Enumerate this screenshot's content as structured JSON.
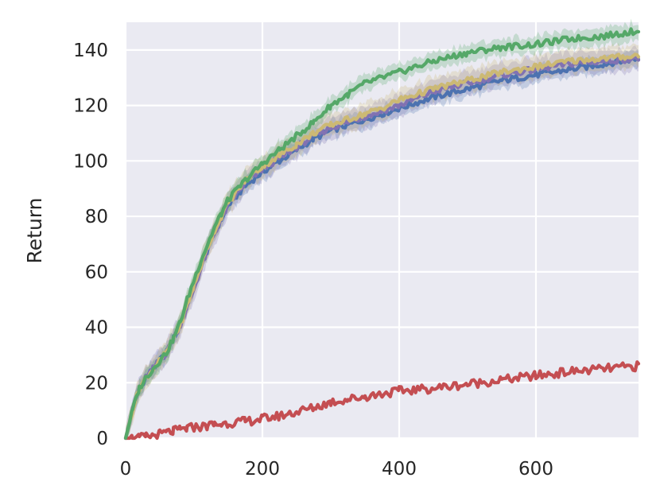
{
  "chart_data": {
    "type": "line",
    "title": "",
    "xlabel": "",
    "ylabel": "Return",
    "xlim": [
      0,
      750
    ],
    "ylim": [
      0,
      150
    ],
    "xticks": [
      0,
      200,
      400,
      600
    ],
    "yticks": [
      0,
      20,
      40,
      60,
      80,
      100,
      120,
      140
    ],
    "xtick_labels": [
      "0",
      "200",
      "400",
      "600"
    ],
    "ytick_labels": [
      "0",
      "20",
      "40",
      "60",
      "80",
      "100",
      "120",
      "140"
    ],
    "grid": true,
    "legend": "none",
    "x": [
      0,
      10,
      20,
      30,
      40,
      50,
      60,
      70,
      80,
      90,
      100,
      110,
      120,
      130,
      140,
      150,
      175,
      200,
      225,
      250,
      275,
      300,
      325,
      350,
      375,
      400,
      450,
      500,
      550,
      600,
      650,
      700,
      750
    ],
    "series": [
      {
        "color": "#4c72b0",
        "values": [
          0,
          10,
          18,
          22,
          25,
          28,
          31,
          36,
          41,
          48,
          55,
          62,
          68,
          74,
          79,
          84,
          91,
          96,
          100,
          104,
          108,
          111,
          113,
          115,
          117,
          119,
          123,
          126,
          129,
          131,
          133,
          135,
          137
        ],
        "band": 3
      },
      {
        "color": "#8172b2",
        "values": [
          0,
          10,
          18,
          22,
          25,
          28,
          31,
          36,
          41,
          47,
          54,
          61,
          68,
          74,
          79,
          84,
          92,
          97,
          101,
          105,
          109,
          112,
          114,
          116,
          118,
          120,
          125,
          128,
          131,
          133,
          135,
          136,
          137
        ],
        "band": 4
      },
      {
        "color": "#55a868",
        "values": [
          0,
          10,
          18,
          22,
          25,
          28,
          31,
          36,
          42,
          50,
          57,
          64,
          70,
          76,
          81,
          86,
          93,
          99,
          104,
          109,
          114,
          120,
          124,
          128,
          130,
          132,
          136,
          139,
          141,
          142,
          144,
          145,
          147
        ],
        "band": 3
      },
      {
        "color": "#ccb974",
        "values": [
          0,
          10,
          18,
          22,
          25,
          28,
          31,
          36,
          41,
          48,
          55,
          62,
          69,
          75,
          80,
          85,
          93,
          98,
          102,
          106,
          110,
          113,
          115,
          117,
          119,
          122,
          126,
          129,
          132,
          134,
          136,
          137,
          138
        ],
        "band": 4
      },
      {
        "color": "#c44e52",
        "values": [
          0,
          0,
          0,
          0.5,
          1,
          1.5,
          2,
          2.5,
          3,
          3.5,
          4,
          4,
          4.5,
          5,
          5,
          5.5,
          6,
          7,
          8,
          9.5,
          11,
          13,
          14,
          15,
          16,
          17,
          18,
          19.5,
          21,
          22.5,
          24,
          25,
          26
        ],
        "band": 0
      }
    ]
  }
}
